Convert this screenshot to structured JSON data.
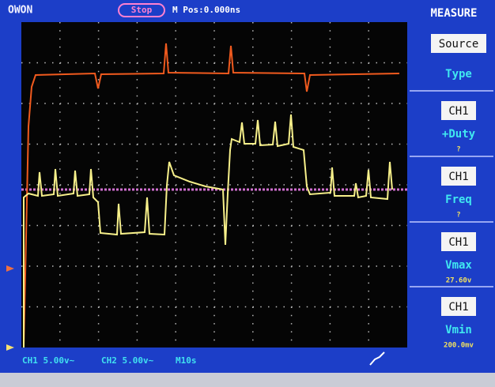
{
  "header": {
    "brand": "OWON",
    "status": "Stop",
    "position": "M Pos:0.000ns",
    "menu_title": "MEASURE"
  },
  "menu": {
    "items": [
      {
        "button": "Source",
        "label": "Type"
      },
      {
        "button": "CH1",
        "label": "+Duty",
        "reading": "?"
      },
      {
        "button": "CH1",
        "label": "Freq",
        "reading": "?"
      },
      {
        "button": "CH1",
        "label": "Vmax",
        "reading": "27.60v"
      },
      {
        "button": "CH1",
        "label": "Vmin",
        "reading": "200.0mv"
      }
    ]
  },
  "footer": {
    "ch1": "CH1 5.00v~",
    "ch2": "CH2 5.00v~",
    "timebase": "M10s"
  }
}
